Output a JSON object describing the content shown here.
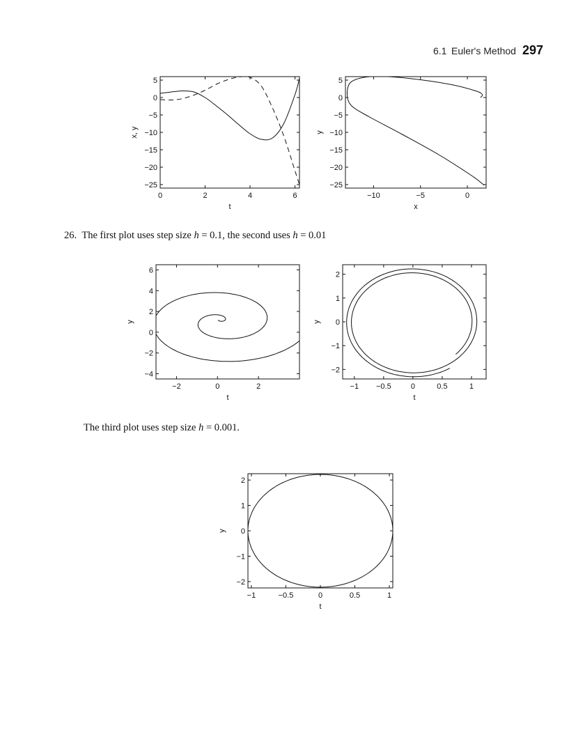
{
  "header": {
    "section": "6.1",
    "title": "Euler's Method",
    "page_number": "297"
  },
  "text": {
    "problem_number": "26.",
    "line1_a": "The first plot uses step size ",
    "line1_b": "h",
    "line1_c": " = 0.1, the second uses ",
    "line1_d": "h",
    "line1_e": " = 0.01",
    "line2_a": "The third plot uses step size ",
    "line2_b": "h",
    "line2_c": " = 0.001."
  },
  "chart_data": [
    {
      "id": "fig1",
      "type": "line",
      "xlabel": "t",
      "ylabel": "x, y",
      "xlim": [
        0,
        6.2
      ],
      "ylim": [
        -26,
        6
      ],
      "xticks": [
        "0",
        "2",
        "4",
        "6"
      ],
      "yticks": [
        "5",
        "0",
        "-5",
        "-10",
        "-15",
        "-20",
        "-25"
      ],
      "series": [
        {
          "style": "solid",
          "x": [
            0,
            0.5,
            1.0,
            1.5,
            2.0,
            2.5,
            3.0,
            3.5,
            4.0,
            4.5,
            5.0,
            5.5,
            6.0,
            6.2
          ],
          "y": [
            1.2,
            1.6,
            1.9,
            1.6,
            0.0,
            -2.4,
            -5.0,
            -7.8,
            -10.4,
            -12.0,
            -11.6,
            -7.5,
            0.8,
            5.5
          ]
        },
        {
          "style": "dashed",
          "x": [
            0,
            0.5,
            1.0,
            1.5,
            2.0,
            2.5,
            3.0,
            3.5,
            4.0,
            4.5,
            5.0,
            5.5,
            6.0,
            6.2
          ],
          "y": [
            -0.6,
            -0.7,
            -0.3,
            0.7,
            2.1,
            3.8,
            5.1,
            5.9,
            5.8,
            3.3,
            -3.0,
            -11.0,
            -21.0,
            -25.0
          ]
        }
      ]
    },
    {
      "id": "fig2",
      "type": "line",
      "xlabel": "x",
      "ylabel": "y",
      "xlim": [
        -13,
        2
      ],
      "ylim": [
        -26,
        6
      ],
      "xticks": [
        "-10",
        "-5",
        "0"
      ],
      "yticks": [
        "5",
        "0",
        "-5",
        "-10",
        "-15",
        "-20",
        "-25"
      ],
      "series": [
        {
          "style": "solid",
          "x": [
            1.4,
            1.6,
            1.0,
            -1.5,
            -5.0,
            -8.5,
            -11.0,
            -12.5,
            -12.8,
            -12.3,
            -10.5,
            -7.0,
            -3.0,
            0.5,
            1.8
          ],
          "y": [
            0.0,
            0.8,
            1.8,
            3.6,
            5.1,
            6.0,
            5.8,
            4.2,
            0.5,
            -2.5,
            -5.5,
            -10.5,
            -16.5,
            -22.5,
            -25.2
          ]
        }
      ]
    },
    {
      "id": "fig3",
      "type": "line",
      "xlabel": "t",
      "ylabel": "y",
      "xlim": [
        -3,
        4
      ],
      "ylim": [
        -4.5,
        6.5
      ],
      "xticks": [
        "-2",
        "0",
        "2"
      ],
      "yticks": [
        "6",
        "4",
        "2",
        "0",
        "-2",
        "-4"
      ],
      "spiral": {
        "cx": 0.2,
        "cy": 1.05,
        "a": 0.35,
        "b": 0.43,
        "theta_start": -0.6,
        "theta_end": 12.5
      }
    },
    {
      "id": "fig4",
      "type": "line",
      "xlabel": "t",
      "ylabel": "y",
      "xlim": [
        -1.2,
        1.25
      ],
      "ylim": [
        -2.4,
        2.4
      ],
      "xticks": [
        "-1",
        "-0.5",
        "0",
        "0.5",
        "1"
      ],
      "yticks": [
        "2",
        "1",
        "0",
        "-1",
        "-2"
      ],
      "spiral": {
        "cx": 0.0,
        "cy": 0.0,
        "rx0": 1.0,
        "ry0": 2.0,
        "growth": 0.082,
        "theta_start": -0.75,
        "theta_end": 11.6
      }
    },
    {
      "id": "fig5",
      "type": "line",
      "xlabel": "t",
      "ylabel": "y",
      "xlim": [
        -1.05,
        1.05
      ],
      "ylim": [
        -2.25,
        2.25
      ],
      "xticks": [
        "-1",
        "-0.5",
        "0",
        "0.5",
        "1"
      ],
      "yticks": [
        "2",
        "1",
        "0",
        "-1",
        "-2"
      ],
      "ellipse": {
        "cx": 0.0,
        "cy": 0.0,
        "rx": 1.05,
        "ry": 2.22
      }
    }
  ]
}
